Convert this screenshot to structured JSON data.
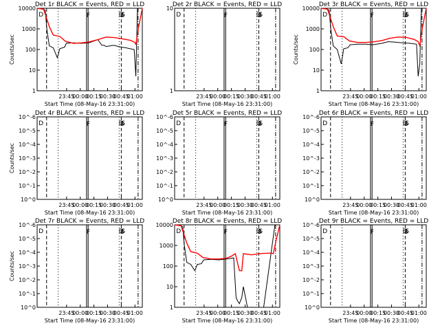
{
  "chart_data": [
    {
      "type": "line",
      "title": "Det 1r BLACK = Events, RED = LLD",
      "xlabel": "Start Time (08-May-16 23:31:00)",
      "ylabel": "Counts/sec",
      "y_scale": "log",
      "xticks": [
        "23:45",
        "00:00",
        "00:15",
        "00:30",
        "00:45",
        "01:00"
      ],
      "yticks": [
        "1",
        "10",
        "100",
        "1000",
        "10000"
      ],
      "ylim": [
        1,
        10000
      ],
      "markers": [
        "D",
        "F",
        "D",
        "S",
        "S"
      ],
      "series": [
        {
          "name": "Events",
          "color": "#000000",
          "x": [
            0,
            0.7,
            1.0,
            1.2,
            1.5,
            2.0,
            2.5,
            2.8,
            3.4,
            3.6,
            4.5,
            5.5,
            6.4,
            7.5,
            8.0,
            8.3,
            8.5,
            9.5,
            10,
            10.5,
            11,
            12.0,
            12.2,
            12.4,
            13
          ],
          "y": [
            10000,
            9500,
            8000,
            1000,
            150,
            120,
            40,
            110,
            130,
            200,
            210,
            200,
            210,
            300,
            160,
            160,
            140,
            160,
            140,
            130,
            120,
            100,
            5,
            10000,
            10000
          ]
        },
        {
          "name": "LLD",
          "color": "#ff0000",
          "x": [
            0,
            0.8,
            1.5,
            2.0,
            2.8,
            3.5,
            4.5,
            5.5,
            6.4,
            7.5,
            8.5,
            9.5,
            10.5,
            11.5,
            12.0,
            12.2,
            12.5,
            13
          ],
          "y": [
            10000,
            9000,
            1300,
            500,
            430,
            250,
            200,
            210,
            230,
            300,
            400,
            380,
            330,
            280,
            230,
            180,
            1000,
            10000
          ]
        }
      ]
    },
    {
      "type": "line",
      "title": "Det 2r BLACK = Events, RED = LLD",
      "xlabel": "Start Time (08-May-16 23:31:00)",
      "ylabel": "",
      "y_scale": "log",
      "xticks": [
        "23:45",
        "00:00",
        "00:15",
        "00:30",
        "00:45",
        "01:00"
      ],
      "yticks": [
        "1",
        "10"
      ],
      "ylim": [
        1,
        10
      ],
      "markers": [
        "D",
        "F",
        "D",
        "S",
        "S"
      ],
      "series": []
    },
    {
      "type": "line",
      "title": "Det 3r BLACK = Events, RED = LLD",
      "xlabel": "Start Time (08-May-16 23:31:00)",
      "ylabel": "Counts/sec",
      "y_scale": "log",
      "xticks": [
        "23:45",
        "00:00",
        "00:15",
        "00:30",
        "00:45",
        "01:00"
      ],
      "yticks": [
        "1",
        "10",
        "100",
        "1000",
        "10000"
      ],
      "ylim": [
        1,
        10000
      ],
      "markers": [
        "D",
        "F",
        "D",
        "S",
        "S"
      ],
      "series": [
        {
          "name": "Events",
          "color": "#000000",
          "x": [
            0,
            0.7,
            1.0,
            1.2,
            1.5,
            2.0,
            2.5,
            2.8,
            3.3,
            3.6,
            4.5,
            5.5,
            6.4,
            7.5,
            8.3,
            9.0,
            10,
            11,
            11.8,
            12.0,
            12.2,
            12.4,
            13
          ],
          "y": [
            10000,
            9500,
            8000,
            1000,
            150,
            100,
            20,
            110,
            120,
            170,
            180,
            180,
            170,
            200,
            240,
            230,
            210,
            200,
            180,
            5,
            20,
            10000,
            10000
          ]
        },
        {
          "name": "LLD",
          "color": "#ff0000",
          "x": [
            0,
            0.8,
            1.5,
            2.0,
            2.8,
            3.5,
            4.5,
            5.5,
            6.4,
            7.5,
            8.5,
            9.5,
            10.5,
            11.5,
            12.0,
            12.2,
            12.5,
            13
          ],
          "y": [
            10000,
            9000,
            1300,
            450,
            420,
            260,
            220,
            220,
            230,
            270,
            350,
            400,
            390,
            310,
            240,
            150,
            1000,
            10000
          ]
        }
      ]
    },
    {
      "type": "line",
      "title": "Det 4r BLACK = Events, RED = LLD",
      "xlabel": "Start Time (08-May-16 23:31:00)",
      "ylabel": "Counts/sec",
      "y_scale": "log",
      "xticks": [
        "23:45",
        "00:00",
        "00:15",
        "00:30",
        "00:45",
        "01:00"
      ],
      "yticks": [
        "10^0",
        "10^-1",
        "10^-2",
        "10^-3",
        "10^-4",
        "10^-5",
        "10^-6"
      ],
      "markers": [
        "D",
        "F",
        "D",
        "S",
        "S"
      ],
      "series": []
    },
    {
      "type": "line",
      "title": "Det 5r BLACK = Events, RED = LLD",
      "xlabel": "Start Time (08-May-16 23:31:00)",
      "ylabel": "",
      "y_scale": "log",
      "xticks": [
        "23:45",
        "00:00",
        "00:15",
        "00:30",
        "00:45",
        "01:00"
      ],
      "yticks": [
        "10^0",
        "10^-1",
        "10^-2",
        "10^-3",
        "10^-4",
        "10^-5",
        "10^-6"
      ],
      "markers": [
        "D",
        "F",
        "D",
        "S",
        "S"
      ],
      "series": []
    },
    {
      "type": "line",
      "title": "Det 6r BLACK = Events, RED = LLD",
      "xlabel": "Start Time (08-May-16 23:31:00)",
      "ylabel": "",
      "y_scale": "log",
      "xticks": [
        "23:45",
        "00:00",
        "00:15",
        "00:30",
        "00:45",
        "01:00"
      ],
      "yticks": [
        "10^0",
        "10^-1",
        "10^-2",
        "10^-3",
        "10^-4",
        "10^-5",
        "10^-6"
      ],
      "markers": [
        "D",
        "F",
        "D",
        "S",
        "S"
      ],
      "series": []
    },
    {
      "type": "line",
      "title": "Det 7r BLACK = Events, RED = LLD",
      "xlabel": "Start Time (08-May-16 23:31:00)",
      "ylabel": "Counts/sec",
      "y_scale": "log",
      "xticks": [
        "23:45",
        "00:00",
        "00:15",
        "00:30",
        "00:45",
        "01:00"
      ],
      "yticks": [
        "10^0",
        "10^-1",
        "10^-2",
        "10^-3",
        "10^-4",
        "10^-5",
        "10^-6"
      ],
      "markers": [
        "D",
        "F",
        "D",
        "S",
        "S"
      ],
      "series": []
    },
    {
      "type": "line",
      "title": "Det 8r BLACK = Events, RED = LLD",
      "xlabel": "Start Time (08-May-16 23:31:00)",
      "ylabel": "",
      "y_scale": "log",
      "xticks": [
        "23:45",
        "00:00",
        "00:15",
        "00:30",
        "00:45",
        "01:00"
      ],
      "yticks": [
        "1",
        "10",
        "100",
        "1000",
        "10000"
      ],
      "ylim": [
        1,
        10000
      ],
      "markers": [
        "D",
        "F",
        "D",
        "S",
        "S"
      ],
      "series": [
        {
          "name": "Events",
          "color": "#000000",
          "x": [
            0,
            0.7,
            1.0,
            1.2,
            1.5,
            2.0,
            2.5,
            2.8,
            3.3,
            3.6,
            4.5,
            5.5,
            6.4,
            7.0,
            7.3,
            7.6,
            7.8,
            8.0,
            8.3,
            8.5,
            9.0,
            9.5,
            10.0,
            10.2,
            10.5,
            11,
            12.4,
            13
          ],
          "y": [
            10000,
            9500,
            8000,
            1000,
            150,
            120,
            60,
            120,
            130,
            200,
            210,
            200,
            220,
            240,
            250,
            3,
            2,
            1.5,
            3,
            10,
            1,
            1,
            1,
            1,
            1,
            1,
            10000,
            10000
          ]
        },
        {
          "name": "LLD",
          "color": "#ff0000",
          "x": [
            0,
            0.8,
            1.5,
            2.0,
            2.8,
            3.5,
            4.5,
            5.5,
            6.4,
            7.0,
            7.5,
            7.8,
            8.0,
            8.3,
            8.5,
            9.5,
            10.5,
            11.5,
            12.0,
            12.2,
            12.5,
            13
          ],
          "y": [
            10000,
            9000,
            1300,
            500,
            420,
            260,
            220,
            220,
            240,
            300,
            400,
            130,
            60,
            60,
            400,
            350,
            400,
            420,
            420,
            400,
            1500,
            10000
          ]
        }
      ]
    },
    {
      "type": "line",
      "title": "Det 9r BLACK = Events, RED = LLD",
      "xlabel": "Start Time (08-May-16 23:31:00)",
      "ylabel": "",
      "y_scale": "log",
      "xticks": [
        "23:45",
        "00:00",
        "00:15",
        "00:30",
        "00:45",
        "01:00"
      ],
      "yticks": [
        "10^0",
        "10^-1",
        "10^-2",
        "10^-3",
        "10^-4",
        "10^-5",
        "10^-6"
      ],
      "markers": [
        "D",
        "F",
        "D",
        "S",
        "S"
      ],
      "series": []
    }
  ]
}
